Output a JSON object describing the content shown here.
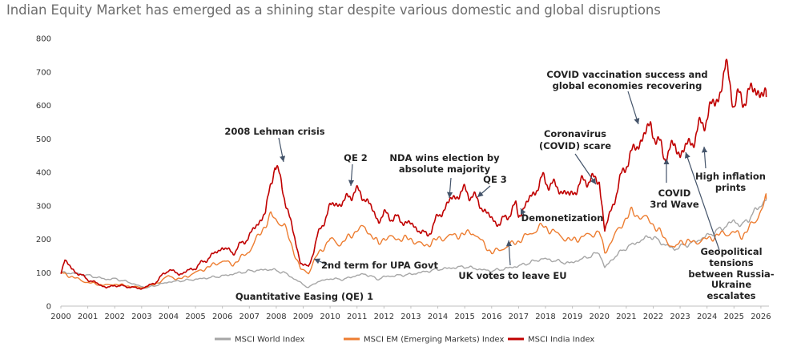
{
  "title": "Indian Equity Market has emerged as a shining star despite various domestic and global disruptions",
  "chart_data": {
    "type": "line",
    "ylim": [
      0,
      800
    ],
    "xlim": [
      2000,
      2026.3
    ],
    "y_ticks": [
      "0",
      "100",
      "200",
      "300",
      "400",
      "500",
      "600",
      "700",
      "800"
    ],
    "x_ticks": [
      "2000",
      "2001",
      "2002",
      "2003",
      "2004",
      "2005",
      "2006",
      "2007",
      "2008",
      "2009",
      "2010",
      "2011",
      "2012",
      "2013",
      "2014",
      "2015",
      "2016",
      "2017",
      "2018",
      "2019",
      "2020",
      "2021",
      "2022",
      "2023",
      "2024",
      "2025",
      "2026"
    ],
    "grid": false,
    "legend_position": "bottom",
    "series": [
      {
        "name": "MSCI World Index",
        "color": "#a6a6a6",
        "points": [
          [
            2000,
            100
          ],
          [
            2000.5,
            98
          ],
          [
            2001,
            92
          ],
          [
            2001.7,
            80
          ],
          [
            2002,
            82
          ],
          [
            2002.5,
            72
          ],
          [
            2003,
            58
          ],
          [
            2003.2,
            55
          ],
          [
            2004,
            72
          ],
          [
            2005,
            80
          ],
          [
            2006,
            90
          ],
          [
            2007,
            105
          ],
          [
            2007.8,
            110
          ],
          [
            2008.3,
            100
          ],
          [
            2008.8,
            75
          ],
          [
            2009.2,
            55
          ],
          [
            2009.5,
            72
          ],
          [
            2010,
            82
          ],
          [
            2010.5,
            80
          ],
          [
            2011,
            92
          ],
          [
            2011.3,
            96
          ],
          [
            2011.8,
            80
          ],
          [
            2012,
            88
          ],
          [
            2013,
            95
          ],
          [
            2014,
            110
          ],
          [
            2015,
            118
          ],
          [
            2015.7,
            108
          ],
          [
            2016,
            105
          ],
          [
            2016.5,
            112
          ],
          [
            2017,
            120
          ],
          [
            2017.9,
            142
          ],
          [
            2018.9,
            128
          ],
          [
            2019.5,
            145
          ],
          [
            2020,
            160
          ],
          [
            2020.2,
            115
          ],
          [
            2020.6,
            150
          ],
          [
            2021,
            175
          ],
          [
            2021.9,
            210
          ],
          [
            2022.4,
            185
          ],
          [
            2022.8,
            170
          ],
          [
            2023,
            178
          ],
          [
            2023.5,
            190
          ],
          [
            2024,
            210
          ],
          [
            2024.5,
            230
          ],
          [
            2025,
            255
          ],
          [
            2025.3,
            240
          ],
          [
            2025.8,
            285
          ],
          [
            2026.2,
            320
          ]
        ]
      },
      {
        "name": "MSCI EM (Emerging Markets) Index",
        "color": "#ed7d31",
        "points": [
          [
            2000,
            100
          ],
          [
            2000.5,
            85
          ],
          [
            2001,
            70
          ],
          [
            2001.7,
            62
          ],
          [
            2002,
            66
          ],
          [
            2002.5,
            60
          ],
          [
            2003,
            55
          ],
          [
            2003.5,
            65
          ],
          [
            2004,
            90
          ],
          [
            2004.4,
            80
          ],
          [
            2005,
            100
          ],
          [
            2006,
            135
          ],
          [
            2006.4,
            125
          ],
          [
            2007,
            165
          ],
          [
            2007.8,
            270
          ],
          [
            2008.3,
            240
          ],
          [
            2008.9,
            110
          ],
          [
            2009.2,
            100
          ],
          [
            2009.5,
            150
          ],
          [
            2010,
            200
          ],
          [
            2010.4,
            185
          ],
          [
            2011,
            228
          ],
          [
            2011.3,
            235
          ],
          [
            2011.8,
            185
          ],
          [
            2012,
            205
          ],
          [
            2013,
            200
          ],
          [
            2013.5,
            180
          ],
          [
            2014,
            200
          ],
          [
            2014.5,
            210
          ],
          [
            2015,
            215
          ],
          [
            2015.3,
            222
          ],
          [
            2016,
            160
          ],
          [
            2016.3,
            168
          ],
          [
            2017,
            195
          ],
          [
            2017.9,
            240
          ],
          [
            2018.9,
            195
          ],
          [
            2019.5,
            210
          ],
          [
            2020,
            222
          ],
          [
            2020.2,
            160
          ],
          [
            2020.6,
            215
          ],
          [
            2021,
            265
          ],
          [
            2021.2,
            280
          ],
          [
            2021.9,
            255
          ],
          [
            2022.4,
            205
          ],
          [
            2022.8,
            170
          ],
          [
            2023,
            195
          ],
          [
            2023.5,
            190
          ],
          [
            2024,
            200
          ],
          [
            2024.5,
            215
          ],
          [
            2025,
            220
          ],
          [
            2025.3,
            210
          ],
          [
            2025.8,
            255
          ],
          [
            2026.2,
            320
          ]
        ]
      },
      {
        "name": "MSCI India Index",
        "color": "#c00000",
        "points": [
          [
            2000,
            100
          ],
          [
            2000.15,
            140
          ],
          [
            2000.4,
            110
          ],
          [
            2001,
            80
          ],
          [
            2001.7,
            55
          ],
          [
            2002,
            62
          ],
          [
            2002.5,
            58
          ],
          [
            2003,
            52
          ],
          [
            2003.5,
            70
          ],
          [
            2004,
            110
          ],
          [
            2004.4,
            95
          ],
          [
            2005,
            115
          ],
          [
            2006,
            175
          ],
          [
            2006.4,
            160
          ],
          [
            2007,
            210
          ],
          [
            2007.6,
            280
          ],
          [
            2007.95,
            430
          ],
          [
            2008.3,
            330
          ],
          [
            2008.9,
            130
          ],
          [
            2009.2,
            115
          ],
          [
            2009.5,
            200
          ],
          [
            2010,
            300
          ],
          [
            2010.5,
            310
          ],
          [
            2010.9,
            345
          ],
          [
            2011.3,
            325
          ],
          [
            2011.8,
            255
          ],
          [
            2012,
            275
          ],
          [
            2013,
            245
          ],
          [
            2013.6,
            210
          ],
          [
            2014,
            265
          ],
          [
            2014.5,
            320
          ],
          [
            2015,
            345
          ],
          [
            2015.3,
            330
          ],
          [
            2016,
            260
          ],
          [
            2016.3,
            245
          ],
          [
            2016.9,
            300
          ],
          [
            2017,
            270
          ],
          [
            2017.9,
            380
          ],
          [
            2018.9,
            330
          ],
          [
            2019.5,
            380
          ],
          [
            2020,
            375
          ],
          [
            2020.2,
            225
          ],
          [
            2020.6,
            330
          ],
          [
            2021,
            430
          ],
          [
            2021.9,
            540
          ],
          [
            2022.4,
            450
          ],
          [
            2022.8,
            480
          ],
          [
            2023,
            455
          ],
          [
            2023.5,
            500
          ],
          [
            2024,
            570
          ],
          [
            2024.5,
            640
          ],
          [
            2024.7,
            720
          ],
          [
            2025,
            610
          ],
          [
            2025.3,
            620
          ],
          [
            2025.8,
            650
          ],
          [
            2026.2,
            625
          ]
        ]
      }
    ],
    "annotations": [
      "2008 Lehman crisis",
      "QE 2",
      "NDA wins election by",
      "absolute majority",
      "QE 3",
      "Coronavirus",
      "(COVID) scare",
      "COVID vaccination success and",
      "global economies recovering",
      "COVID",
      "3rd Wave",
      "High inflation",
      "prints",
      "Demonetization",
      "2nd term for UPA Govt",
      "Quantitative Easing (QE) 1",
      "UK votes to leave EU",
      "Geopolitical",
      "tensions",
      "between Russia-",
      "Ukraine",
      "escalates"
    ]
  }
}
